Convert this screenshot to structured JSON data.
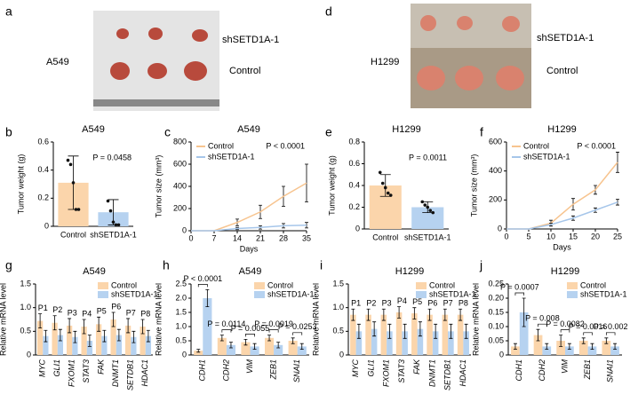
{
  "photos": [
    {
      "panel": "a",
      "cell_line": "A549",
      "top_label": "shSETD1A-1",
      "bottom_label": "Control"
    },
    {
      "panel": "d",
      "cell_line": "H1299",
      "top_label": "shSETD1A-1",
      "bottom_label": "Control"
    }
  ],
  "chart_data": [
    {
      "type": "bar",
      "panel": "b",
      "title": "A549",
      "ylabel": "Tumor weight (g)",
      "categories": [
        "Control",
        "shSETD1A-1"
      ],
      "values": [
        0.31,
        0.1
      ],
      "errors": [
        0.19,
        0.09
      ],
      "colors": [
        "#fbd5ab",
        "#b6d2f0"
      ],
      "points": [
        [
          0.47,
          0.44,
          0.31,
          0.12,
          0.12
        ],
        [
          0.18,
          0.11,
          0.03,
          0.01,
          0.01
        ]
      ],
      "ylim": [
        0,
        0.6
      ],
      "yticks": [
        0,
        0.2,
        0.4,
        0.6
      ],
      "annotations": [
        "P = 0.0458"
      ]
    },
    {
      "type": "line",
      "panel": "c",
      "title": "A549",
      "ylabel": "Tumor size (mm³)",
      "xlabel": "Days",
      "x": [
        0,
        7,
        14,
        21,
        28,
        35
      ],
      "xlim": [
        0,
        35
      ],
      "xticks": [
        0,
        7,
        14,
        21,
        28,
        35
      ],
      "ylim": [
        0,
        800
      ],
      "yticks": [
        0,
        200,
        400,
        600,
        800
      ],
      "series": [
        {
          "name": "Control",
          "color": "#f7c48f",
          "values": [
            0,
            0,
            75,
            170,
            310,
            430
          ],
          "errors": [
            0,
            0,
            30,
            60,
            90,
            170
          ]
        },
        {
          "name": "shSETD1A-1",
          "color": "#a6c6ea",
          "values": [
            0,
            0,
            20,
            30,
            45,
            50
          ],
          "errors": [
            0,
            0,
            10,
            15,
            20,
            25
          ]
        }
      ],
      "annotations": [
        "P < 0.0001"
      ]
    },
    {
      "type": "bar",
      "panel": "e",
      "title": "H1299",
      "ylabel": "Tumor weight (g)",
      "categories": [
        "Control",
        "shSETD1A-1"
      ],
      "values": [
        0.4,
        0.2
      ],
      "errors": [
        0.1,
        0.05
      ],
      "colors": [
        "#fbd5ab",
        "#b6d2f0"
      ],
      "points": [
        [
          0.52,
          0.42,
          0.38,
          0.33,
          0.31
        ],
        [
          0.25,
          0.22,
          0.2,
          0.17,
          0.15
        ]
      ],
      "ylim": [
        0,
        0.8
      ],
      "yticks": [
        0,
        0.2,
        0.4,
        0.6,
        0.8
      ],
      "annotations": [
        "P = 0.0011"
      ]
    },
    {
      "type": "line",
      "panel": "f",
      "title": "H1299",
      "ylabel": "Tumor size (mm³)",
      "xlabel": "Days",
      "x": [
        0,
        5,
        10,
        15,
        20,
        25
      ],
      "xlim": [
        0,
        25
      ],
      "xticks": [
        0,
        5,
        10,
        15,
        20,
        25
      ],
      "ylim": [
        0,
        600
      ],
      "yticks": [
        0,
        200,
        400,
        600
      ],
      "series": [
        {
          "name": "Control",
          "color": "#f7c48f",
          "values": [
            0,
            0,
            40,
            170,
            270,
            460
          ],
          "errors": [
            0,
            0,
            20,
            40,
            30,
            70
          ]
        },
        {
          "name": "shSETD1A-1",
          "color": "#a6c6ea",
          "values": [
            0,
            0,
            30,
            75,
            130,
            185
          ],
          "errors": [
            0,
            0,
            10,
            15,
            15,
            20
          ]
        }
      ],
      "annotations": [
        "P < 0.0001"
      ]
    },
    {
      "type": "grouped_bar",
      "panel": "g",
      "title": "A549",
      "ylabel": "Relative mRNA level",
      "categories": [
        "MYC",
        "GLI1",
        "FXOM1",
        "STAT3",
        "FAK",
        "DNMT1",
        "SETDB1",
        "HDAC1"
      ],
      "ylim": [
        0,
        1.5
      ],
      "yticks": [
        0,
        0.5,
        {
          "value": 1,
          "label": "1.0"
        },
        1.5
      ],
      "legend": "upper right",
      "series": [
        {
          "name": "Control",
          "color": "#fbd5ab",
          "values": [
            0.72,
            0.68,
            0.62,
            0.6,
            0.65,
            0.75,
            0.62,
            0.6
          ],
          "errors": [
            0.15,
            0.15,
            0.15,
            0.15,
            0.15,
            0.15,
            0.15,
            0.15
          ]
        },
        {
          "name": "shSETD1A-1",
          "color": "#b6d2f0",
          "values": [
            0.4,
            0.42,
            0.38,
            0.3,
            0.4,
            0.42,
            0.38,
            0.4
          ],
          "errors": [
            0.12,
            0.12,
            0.12,
            0.12,
            0.12,
            0.12,
            0.12,
            0.12
          ]
        }
      ],
      "annotations": [
        "P1",
        "P2",
        "P3",
        "P4",
        "P5",
        "P6",
        "P7",
        "P8"
      ]
    },
    {
      "type": "grouped_bar",
      "panel": "h",
      "title": "A549",
      "ylabel": "Relative mRNA level",
      "categories": [
        "CDH1",
        "CDH2",
        "VIM",
        "ZEB1",
        "SNAI1"
      ],
      "ylim": [
        0,
        2.5
      ],
      "yticks": [
        0,
        0.5,
        {
          "value": 1,
          "label": "1.0"
        },
        1.5,
        {
          "value": 2,
          "label": "2.0"
        },
        2.5
      ],
      "legend": "upper right",
      "series": [
        {
          "name": "Control",
          "color": "#fbd5ab",
          "values": [
            0.15,
            0.6,
            0.45,
            0.6,
            0.5
          ],
          "errors": [
            0.05,
            0.1,
            0.1,
            0.1,
            0.1
          ]
        },
        {
          "name": "shSETD1A-1",
          "color": "#b6d2f0",
          "values": [
            2.0,
            0.35,
            0.3,
            0.35,
            0.3
          ],
          "errors": [
            0.3,
            0.1,
            0.1,
            0.1,
            0.1
          ]
        }
      ],
      "annotations": [
        "P < 0.0001",
        "P = 0.0114",
        "P = 0.0055",
        "P = 0.0019",
        "P = 0.0253"
      ]
    },
    {
      "type": "grouped_bar",
      "panel": "i",
      "title": "H1299",
      "ylabel": "Relative mRNA level",
      "categories": [
        "MYC",
        "GLI1",
        "FXOM1",
        "STAT3",
        "FAK",
        "DNMT1",
        "SETDB1",
        "HDAC1"
      ],
      "ylim": [
        0,
        1.5
      ],
      "yticks": [
        0,
        0.5,
        {
          "value": 1,
          "label": "1.0"
        },
        1.5
      ],
      "legend": "upper right",
      "series": [
        {
          "name": "Control",
          "color": "#fbd5ab",
          "values": [
            0.85,
            0.85,
            0.85,
            0.9,
            0.88,
            0.85,
            0.85,
            0.85
          ],
          "errors": [
            0.12,
            0.12,
            0.12,
            0.12,
            0.12,
            0.12,
            0.12,
            0.12
          ]
        },
        {
          "name": "shSETD1A-1",
          "color": "#b6d2f0",
          "values": [
            0.5,
            0.55,
            0.5,
            0.5,
            0.55,
            0.5,
            0.5,
            0.5
          ],
          "errors": [
            0.15,
            0.15,
            0.15,
            0.15,
            0.15,
            0.15,
            0.15,
            0.15
          ]
        }
      ],
      "annotations": [
        "P1",
        "P2",
        "P3",
        "P4",
        "P5",
        "P6",
        "P7",
        "P8"
      ]
    },
    {
      "type": "grouped_bar",
      "panel": "j",
      "title": "H1299",
      "ylabel": "Relative mRNA level",
      "categories": [
        "CDH1",
        "CDH2",
        "VIM",
        "ZEB1",
        "SNAI1"
      ],
      "ylim": [
        0,
        0.25
      ],
      "yticks": [
        0,
        0.05,
        {
          "value": 0.1,
          "label": "0.10"
        },
        0.15,
        {
          "value": 0.2,
          "label": "0.20"
        },
        0.25
      ],
      "legend": "upper right",
      "series": [
        {
          "name": "Control",
          "color": "#fbd5ab",
          "values": [
            0.03,
            0.07,
            0.05,
            0.05,
            0.05
          ],
          "errors": [
            0.01,
            0.02,
            0.02,
            0.01,
            0.01
          ]
        },
        {
          "name": "shSETD1A-1",
          "color": "#b6d2f0",
          "values": [
            0.15,
            0.03,
            0.03,
            0.03,
            0.03
          ],
          "errors": [
            0.05,
            0.01,
            0.01,
            0.01,
            0.01
          ]
        }
      ],
      "annotations": [
        "P = 0.0007",
        "P = 0.008",
        "P = 0.0082",
        "P = 0.0016",
        "P = 0.002"
      ]
    }
  ]
}
